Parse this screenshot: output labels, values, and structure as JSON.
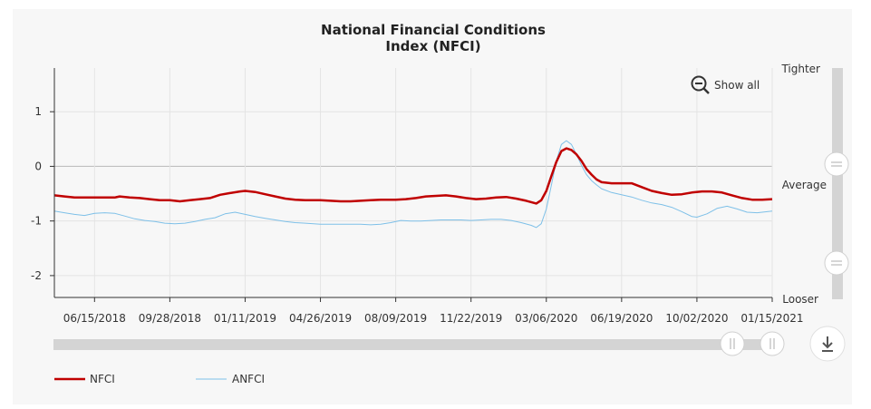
{
  "chart_data": {
    "type": "line",
    "title": "National Financial Conditions",
    "subtitle": "Index (NFCI)",
    "x_tick_labels": [
      "06/15/2018",
      "09/28/2018",
      "01/11/2019",
      "04/26/2019",
      "08/09/2019",
      "11/22/2019",
      "03/06/2020",
      "06/19/2020",
      "10/02/2020",
      "01/15/2021"
    ],
    "y_ticks": [
      1,
      0,
      -1,
      -2
    ],
    "ylim": [
      -2.4,
      1.8
    ],
    "x_domain": [
      "2018-04-20",
      "2021-01-15"
    ],
    "side_labels": {
      "top": "Tighter",
      "middle": "Average",
      "bottom": "Looser"
    },
    "grid": true,
    "legend_position": "bottom-left",
    "series": [
      {
        "name": "NFCI",
        "color": "#c00000",
        "points": [
          [
            "2018-04-20",
            -0.53
          ],
          [
            "2018-05-04",
            -0.55
          ],
          [
            "2018-05-18",
            -0.57
          ],
          [
            "2018-06-01",
            -0.57
          ],
          [
            "2018-06-15",
            -0.57
          ],
          [
            "2018-06-29",
            -0.57
          ],
          [
            "2018-07-13",
            -0.57
          ],
          [
            "2018-07-20",
            -0.55
          ],
          [
            "2018-08-03",
            -0.57
          ],
          [
            "2018-08-17",
            -0.58
          ],
          [
            "2018-08-31",
            -0.6
          ],
          [
            "2018-09-14",
            -0.62
          ],
          [
            "2018-09-28",
            -0.62
          ],
          [
            "2018-10-12",
            -0.64
          ],
          [
            "2018-10-26",
            -0.62
          ],
          [
            "2018-11-09",
            -0.6
          ],
          [
            "2018-11-23",
            -0.58
          ],
          [
            "2018-12-07",
            -0.52
          ],
          [
            "2018-12-21",
            -0.49
          ],
          [
            "2019-01-04",
            -0.46
          ],
          [
            "2019-01-11",
            -0.45
          ],
          [
            "2019-01-25",
            -0.47
          ],
          [
            "2019-02-08",
            -0.51
          ],
          [
            "2019-02-22",
            -0.55
          ],
          [
            "2019-03-08",
            -0.59
          ],
          [
            "2019-03-22",
            -0.61
          ],
          [
            "2019-04-05",
            -0.62
          ],
          [
            "2019-04-26",
            -0.62
          ],
          [
            "2019-05-10",
            -0.63
          ],
          [
            "2019-05-24",
            -0.64
          ],
          [
            "2019-06-07",
            -0.64
          ],
          [
            "2019-06-21",
            -0.63
          ],
          [
            "2019-07-05",
            -0.62
          ],
          [
            "2019-07-19",
            -0.61
          ],
          [
            "2019-08-09",
            -0.61
          ],
          [
            "2019-08-23",
            -0.6
          ],
          [
            "2019-09-06",
            -0.58
          ],
          [
            "2019-09-20",
            -0.55
          ],
          [
            "2019-10-04",
            -0.54
          ],
          [
            "2019-10-18",
            -0.53
          ],
          [
            "2019-11-01",
            -0.55
          ],
          [
            "2019-11-15",
            -0.58
          ],
          [
            "2019-11-29",
            -0.6
          ],
          [
            "2019-12-13",
            -0.59
          ],
          [
            "2019-12-27",
            -0.57
          ],
          [
            "2020-01-10",
            -0.56
          ],
          [
            "2020-01-24",
            -0.59
          ],
          [
            "2020-02-07",
            -0.63
          ],
          [
            "2020-02-21",
            -0.68
          ],
          [
            "2020-02-28",
            -0.62
          ],
          [
            "2020-03-06",
            -0.45
          ],
          [
            "2020-03-13",
            -0.18
          ],
          [
            "2020-03-20",
            0.08
          ],
          [
            "2020-03-27",
            0.28
          ],
          [
            "2020-04-03",
            0.33
          ],
          [
            "2020-04-10",
            0.3
          ],
          [
            "2020-04-17",
            0.22
          ],
          [
            "2020-04-24",
            0.1
          ],
          [
            "2020-05-01",
            -0.05
          ],
          [
            "2020-05-08",
            -0.15
          ],
          [
            "2020-05-15",
            -0.24
          ],
          [
            "2020-05-22",
            -0.29
          ],
          [
            "2020-06-05",
            -0.31
          ],
          [
            "2020-06-19",
            -0.31
          ],
          [
            "2020-07-03",
            -0.31
          ],
          [
            "2020-07-17",
            -0.38
          ],
          [
            "2020-07-31",
            -0.45
          ],
          [
            "2020-08-14",
            -0.49
          ],
          [
            "2020-08-28",
            -0.52
          ],
          [
            "2020-09-11",
            -0.51
          ],
          [
            "2020-09-25",
            -0.48
          ],
          [
            "2020-10-09",
            -0.46
          ],
          [
            "2020-10-23",
            -0.46
          ],
          [
            "2020-11-06",
            -0.48
          ],
          [
            "2020-11-20",
            -0.53
          ],
          [
            "2020-12-04",
            -0.58
          ],
          [
            "2020-12-18",
            -0.61
          ],
          [
            "2021-01-01",
            -0.61
          ],
          [
            "2021-01-15",
            -0.6
          ]
        ]
      },
      {
        "name": "ANFCI",
        "color": "#7ec0e8",
        "points": [
          [
            "2018-04-20",
            -0.82
          ],
          [
            "2018-05-04",
            -0.85
          ],
          [
            "2018-05-18",
            -0.88
          ],
          [
            "2018-06-01",
            -0.9
          ],
          [
            "2018-06-15",
            -0.86
          ],
          [
            "2018-06-29",
            -0.85
          ],
          [
            "2018-07-13",
            -0.86
          ],
          [
            "2018-07-27",
            -0.91
          ],
          [
            "2018-08-10",
            -0.96
          ],
          [
            "2018-08-24",
            -0.99
          ],
          [
            "2018-09-07",
            -1.01
          ],
          [
            "2018-09-21",
            -1.04
          ],
          [
            "2018-10-05",
            -1.05
          ],
          [
            "2018-10-19",
            -1.04
          ],
          [
            "2018-11-02",
            -1.01
          ],
          [
            "2018-11-16",
            -0.97
          ],
          [
            "2018-11-30",
            -0.94
          ],
          [
            "2018-12-14",
            -0.87
          ],
          [
            "2018-12-28",
            -0.84
          ],
          [
            "2019-01-11",
            -0.88
          ],
          [
            "2019-01-25",
            -0.92
          ],
          [
            "2019-02-08",
            -0.95
          ],
          [
            "2019-02-22",
            -0.98
          ],
          [
            "2019-03-08",
            -1.01
          ],
          [
            "2019-03-22",
            -1.03
          ],
          [
            "2019-04-05",
            -1.04
          ],
          [
            "2019-04-26",
            -1.06
          ],
          [
            "2019-05-10",
            -1.06
          ],
          [
            "2019-05-24",
            -1.06
          ],
          [
            "2019-06-07",
            -1.06
          ],
          [
            "2019-06-21",
            -1.06
          ],
          [
            "2019-07-05",
            -1.07
          ],
          [
            "2019-07-19",
            -1.06
          ],
          [
            "2019-08-02",
            -1.03
          ],
          [
            "2019-08-16",
            -0.99
          ],
          [
            "2019-08-30",
            -1.0
          ],
          [
            "2019-09-13",
            -1.0
          ],
          [
            "2019-09-27",
            -0.99
          ],
          [
            "2019-10-11",
            -0.98
          ],
          [
            "2019-10-25",
            -0.98
          ],
          [
            "2019-11-08",
            -0.98
          ],
          [
            "2019-11-22",
            -0.99
          ],
          [
            "2019-12-06",
            -0.98
          ],
          [
            "2019-12-20",
            -0.97
          ],
          [
            "2020-01-03",
            -0.97
          ],
          [
            "2020-01-17",
            -0.99
          ],
          [
            "2020-01-31",
            -1.03
          ],
          [
            "2020-02-14",
            -1.08
          ],
          [
            "2020-02-21",
            -1.12
          ],
          [
            "2020-02-28",
            -1.05
          ],
          [
            "2020-03-06",
            -0.78
          ],
          [
            "2020-03-13",
            -0.35
          ],
          [
            "2020-03-20",
            0.1
          ],
          [
            "2020-03-27",
            0.4
          ],
          [
            "2020-04-03",
            0.47
          ],
          [
            "2020-04-10",
            0.4
          ],
          [
            "2020-04-17",
            0.22
          ],
          [
            "2020-04-24",
            0.02
          ],
          [
            "2020-05-01",
            -0.15
          ],
          [
            "2020-05-08",
            -0.26
          ],
          [
            "2020-05-15",
            -0.34
          ],
          [
            "2020-05-22",
            -0.41
          ],
          [
            "2020-06-05",
            -0.48
          ],
          [
            "2020-06-19",
            -0.52
          ],
          [
            "2020-07-03",
            -0.56
          ],
          [
            "2020-07-17",
            -0.62
          ],
          [
            "2020-07-31",
            -0.67
          ],
          [
            "2020-08-14",
            -0.7
          ],
          [
            "2020-08-28",
            -0.75
          ],
          [
            "2020-09-11",
            -0.83
          ],
          [
            "2020-09-25",
            -0.92
          ],
          [
            "2020-10-02",
            -0.93
          ],
          [
            "2020-10-16",
            -0.87
          ],
          [
            "2020-10-30",
            -0.77
          ],
          [
            "2020-11-13",
            -0.73
          ],
          [
            "2020-11-27",
            -0.78
          ],
          [
            "2020-12-11",
            -0.84
          ],
          [
            "2020-12-25",
            -0.85
          ],
          [
            "2021-01-08",
            -0.83
          ],
          [
            "2021-01-15",
            -0.82
          ]
        ]
      }
    ]
  },
  "controls": {
    "show_all_label": "Show all",
    "zoom_icon": "zoom-out-icon",
    "download_icon": "download-icon"
  }
}
